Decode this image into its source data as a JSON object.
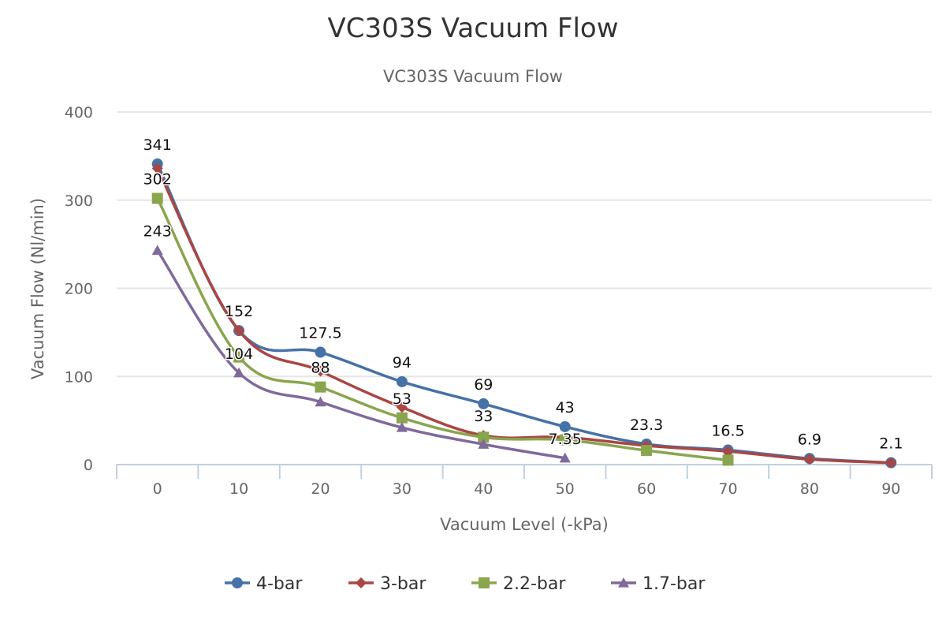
{
  "chart_data": {
    "type": "line",
    "title": "VC303S Vacuum Flow",
    "subtitle": "VC303S Vacuum Flow",
    "xlabel": "Vacuum Level (-kPa)",
    "ylabel": "Vacuum Flow (Nl/min)",
    "categories": [
      "0",
      "10",
      "20",
      "30",
      "40",
      "50",
      "60",
      "70",
      "80",
      "90"
    ],
    "ylim": [
      0,
      400
    ],
    "yticks": [
      "0",
      "100",
      "200",
      "300",
      "400"
    ],
    "ytick_values": [
      0,
      100,
      200,
      300,
      400
    ],
    "grid": true,
    "legend_position": "bottom",
    "series": [
      {
        "name": "4-bar",
        "color": "#4572a7",
        "marker": "circle",
        "values": [
          341,
          152,
          127.5,
          94,
          69,
          43,
          23.3,
          16.5,
          6.9,
          2.1
        ],
        "labels": [
          "341",
          "152",
          "127.5",
          "94",
          "69",
          "43",
          "23.3",
          "16.5",
          "6.9",
          "2.1"
        ]
      },
      {
        "name": "3-bar",
        "color": "#aa4643",
        "marker": "diamond",
        "values": [
          336,
          152,
          106,
          65,
          33,
          31,
          21.5,
          15,
          6,
          2
        ],
        "labels": [
          null,
          null,
          null,
          null,
          "33",
          null,
          null,
          null,
          null,
          null
        ]
      },
      {
        "name": "2.2-bar",
        "color": "#89a54e",
        "marker": "square",
        "values": [
          302,
          122,
          88,
          53,
          31,
          28,
          16,
          5,
          null,
          null
        ],
        "labels": [
          "302",
          null,
          "88",
          "53",
          null,
          null,
          null,
          null,
          null,
          null
        ]
      },
      {
        "name": "1.7-bar",
        "color": "#80699b",
        "marker": "triangle",
        "values": [
          243,
          104,
          71,
          42,
          23,
          7.35,
          null,
          null,
          null,
          null
        ],
        "labels": [
          "243",
          "104",
          null,
          null,
          null,
          "7.35",
          null,
          null,
          null,
          null
        ]
      }
    ]
  }
}
